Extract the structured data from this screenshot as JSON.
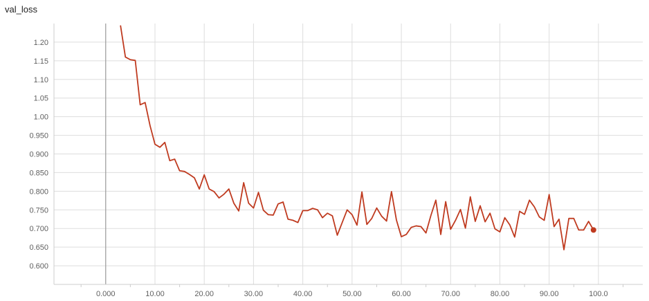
{
  "chart_data": {
    "type": "line",
    "title": "val_loss",
    "xlabel": "",
    "ylabel": "",
    "xlim": [
      -10.5,
      109
    ],
    "ylim": [
      0.55,
      1.25
    ],
    "x_ticks": [
      {
        "value": 0,
        "label": "0.000"
      },
      {
        "value": 10,
        "label": "10.00"
      },
      {
        "value": 20,
        "label": "20.00"
      },
      {
        "value": 30,
        "label": "30.00"
      },
      {
        "value": 40,
        "label": "40.00"
      },
      {
        "value": 50,
        "label": "50.00"
      },
      {
        "value": 60,
        "label": "60.00"
      },
      {
        "value": 70,
        "label": "70.00"
      },
      {
        "value": 80,
        "label": "80.00"
      },
      {
        "value": 90,
        "label": "90.00"
      },
      {
        "value": 100,
        "label": "100.0"
      }
    ],
    "y_ticks": [
      {
        "value": 0.6,
        "label": "0.600"
      },
      {
        "value": 0.65,
        "label": "0.650"
      },
      {
        "value": 0.7,
        "label": "0.700"
      },
      {
        "value": 0.75,
        "label": "0.750"
      },
      {
        "value": 0.8,
        "label": "0.800"
      },
      {
        "value": 0.85,
        "label": "0.850"
      },
      {
        "value": 0.9,
        "label": "0.900"
      },
      {
        "value": 0.95,
        "label": "0.950"
      },
      {
        "value": 1.0,
        "label": "1.00"
      },
      {
        "value": 1.05,
        "label": "1.05"
      },
      {
        "value": 1.1,
        "label": "1.10"
      },
      {
        "value": 1.15,
        "label": "1.15"
      },
      {
        "value": 1.2,
        "label": "1.20"
      }
    ],
    "grid": true,
    "line_color": "#bf3a1f",
    "series": [
      {
        "x": [
          3,
          4,
          5,
          6,
          7,
          8,
          9,
          10,
          11,
          12,
          13,
          14,
          15,
          16,
          17,
          18,
          19,
          20,
          21,
          22,
          23,
          24,
          25,
          26,
          27,
          28,
          29,
          30,
          31,
          32,
          33,
          34,
          35,
          36,
          37,
          38,
          39,
          40,
          41,
          42,
          43,
          44,
          45,
          46,
          47,
          48,
          49,
          50,
          51,
          52,
          53,
          54,
          55,
          56,
          57,
          58,
          59,
          60,
          61,
          62,
          63,
          64,
          65,
          66,
          67,
          68,
          69,
          70,
          71,
          72,
          73,
          74,
          75,
          76,
          77,
          78,
          79,
          80,
          81,
          82,
          83,
          84,
          85,
          86,
          87,
          88,
          89,
          90,
          91,
          92,
          93,
          94,
          95,
          96,
          97,
          98,
          99
        ],
        "y": [
          1.245,
          1.16,
          1.153,
          1.151,
          1.032,
          1.038,
          0.976,
          0.926,
          0.918,
          0.931,
          0.882,
          0.886,
          0.855,
          0.853,
          0.845,
          0.836,
          0.806,
          0.844,
          0.806,
          0.799,
          0.782,
          0.792,
          0.806,
          0.768,
          0.747,
          0.823,
          0.768,
          0.755,
          0.797,
          0.749,
          0.737,
          0.736,
          0.766,
          0.771,
          0.725,
          0.722,
          0.716,
          0.748,
          0.748,
          0.754,
          0.75,
          0.729,
          0.741,
          0.734,
          0.682,
          0.716,
          0.75,
          0.737,
          0.709,
          0.798,
          0.711,
          0.727,
          0.755,
          0.733,
          0.72,
          0.799,
          0.723,
          0.678,
          0.684,
          0.703,
          0.707,
          0.705,
          0.688,
          0.735,
          0.776,
          0.684,
          0.772,
          0.698,
          0.722,
          0.751,
          0.701,
          0.785,
          0.719,
          0.761,
          0.718,
          0.741,
          0.699,
          0.691,
          0.729,
          0.71,
          0.677,
          0.746,
          0.738,
          0.776,
          0.758,
          0.731,
          0.722,
          0.791,
          0.705,
          0.725,
          0.643,
          0.727,
          0.727,
          0.696,
          0.696,
          0.719,
          0.696
        ]
      }
    ]
  }
}
